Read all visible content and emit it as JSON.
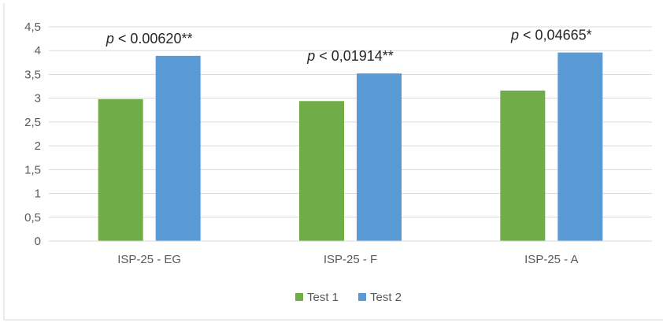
{
  "chart_data": {
    "type": "bar",
    "categories": [
      "ISP-25 - EG",
      "ISP-25 - F",
      "ISP-25 - A"
    ],
    "series": [
      {
        "name": "Test 1",
        "values": [
          2.98,
          2.94,
          3.16
        ],
        "color": "#70ad47"
      },
      {
        "name": "Test 2",
        "values": [
          3.89,
          3.52,
          3.96
        ],
        "color": "#5b9bd5"
      }
    ],
    "annotations": [
      {
        "prefix": "p",
        "text": " < 0.00620**"
      },
      {
        "prefix": "p",
        "text": " < 0,01914**"
      },
      {
        "prefix": "p",
        "text": " < 0,04665*"
      }
    ],
    "ylim": [
      0,
      4.5
    ],
    "yticks": [
      {
        "value": 0,
        "label": "0"
      },
      {
        "value": 0.5,
        "label": "0,5"
      },
      {
        "value": 1,
        "label": "1"
      },
      {
        "value": 1.5,
        "label": "1,5"
      },
      {
        "value": 2,
        "label": "2"
      },
      {
        "value": 2.5,
        "label": "2,5"
      },
      {
        "value": 3,
        "label": "3"
      },
      {
        "value": 3.5,
        "label": "3,5"
      },
      {
        "value": 4,
        "label": "4"
      },
      {
        "value": 4.5,
        "label": "4,5"
      }
    ],
    "grid": true,
    "legend_position": "bottom",
    "title": "",
    "xlabel": "",
    "ylabel": ""
  }
}
